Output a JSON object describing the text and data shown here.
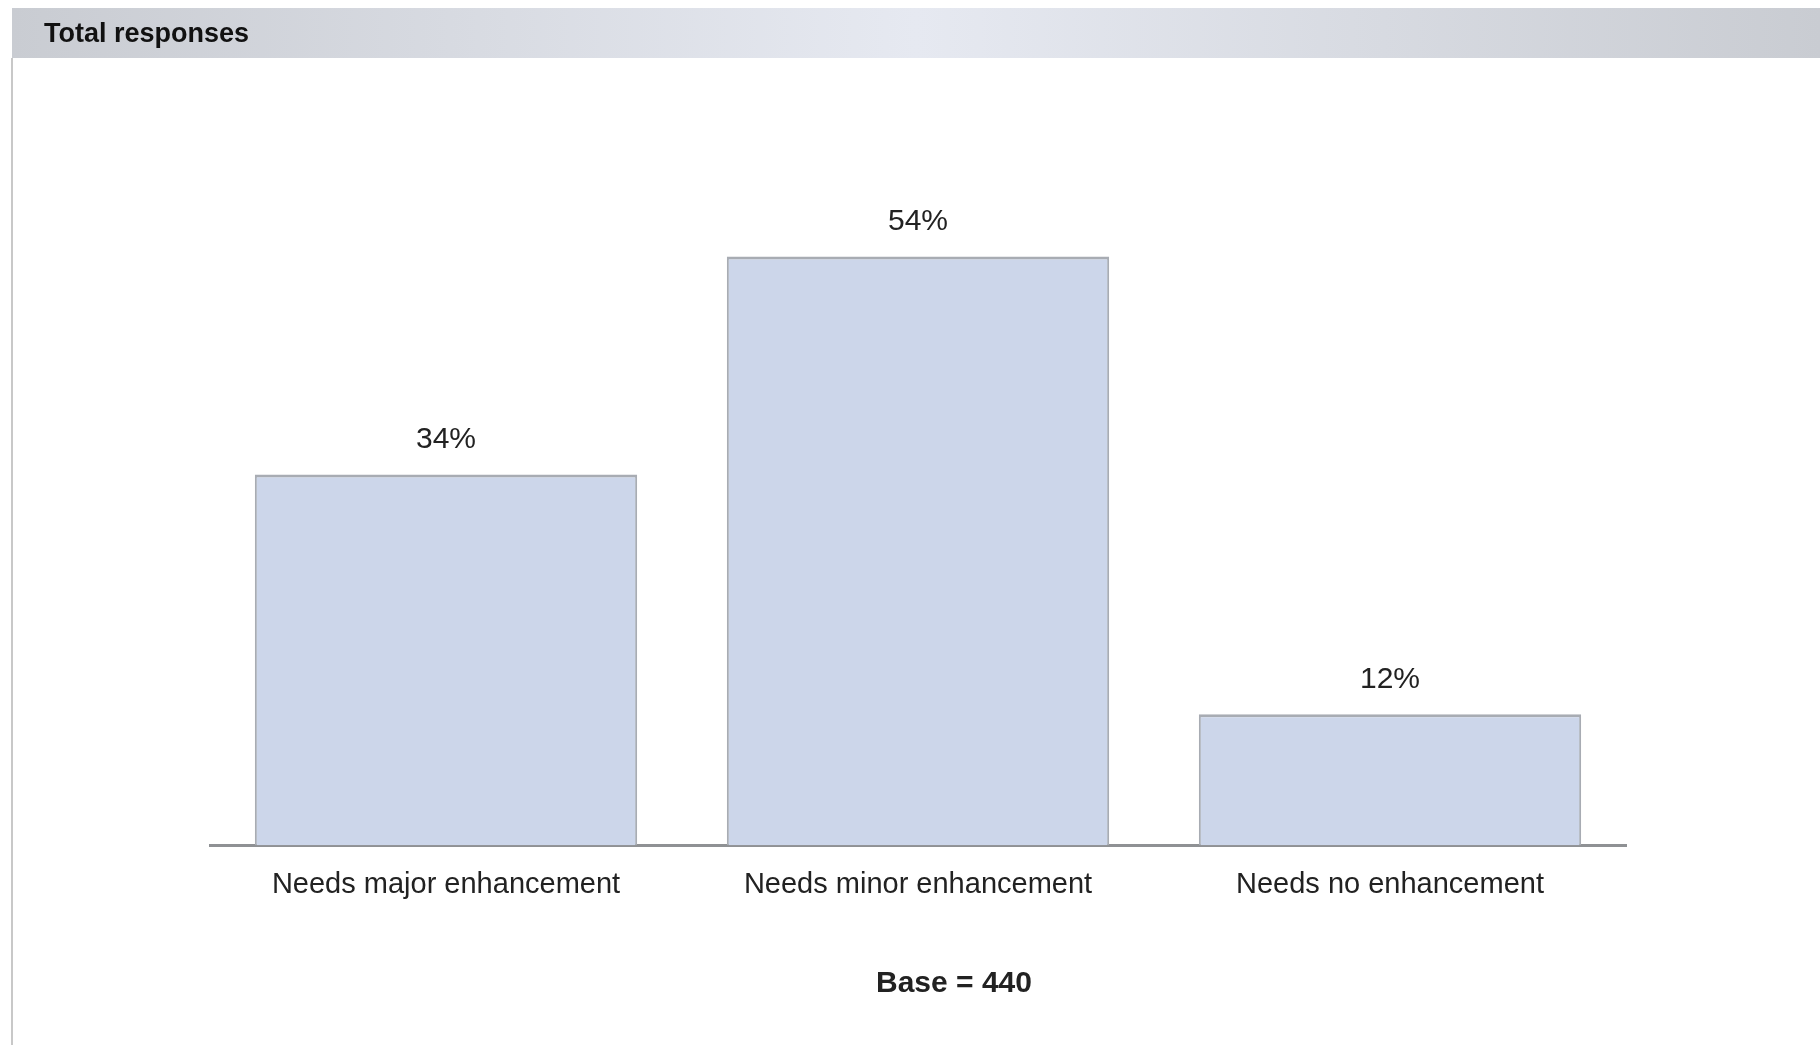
{
  "chart_data": {
    "type": "bar",
    "title": "Total responses",
    "categories": [
      "Needs major enhancement",
      "Needs minor enhancement",
      "Needs no enhancement"
    ],
    "values": [
      34,
      54,
      12
    ],
    "value_labels": [
      "34%",
      "54%",
      "12%"
    ],
    "color": "#ccd6ea",
    "grid": false,
    "legend": false,
    "annotations": [
      "Base = 440"
    ]
  }
}
